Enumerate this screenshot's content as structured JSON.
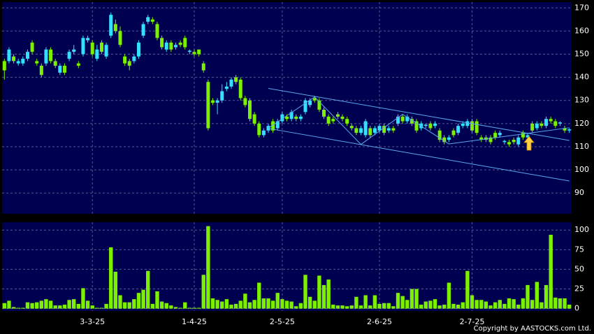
{
  "chart_data": [
    {
      "type": "candlestick",
      "open": [
        147,
        147,
        149,
        146,
        146,
        148,
        155,
        147,
        145,
        146,
        152,
        147,
        142,
        145,
        148,
        151,
        146,
        150,
        156,
        155,
        148,
        155,
        149,
        158,
        163,
        160,
        149,
        147,
        147,
        149,
        158,
        164,
        165,
        163,
        157,
        152,
        155,
        153,
        155,
        157,
        151,
        151,
        152,
        146,
        138,
        130,
        129,
        130,
        135,
        136,
        140,
        139,
        131,
        130,
        124,
        120,
        115,
        117,
        121,
        118,
        121,
        123,
        122,
        123,
        122,
        125,
        128,
        131,
        130,
        126,
        123,
        122,
        124,
        123,
        122,
        119,
        118,
        116,
        115,
        118,
        116,
        117,
        119,
        117,
        118,
        120,
        123,
        121,
        122,
        121,
        118,
        119,
        120,
        119,
        117,
        114,
        113,
        117,
        116,
        119,
        119,
        121,
        121,
        114,
        114,
        114,
        116,
        115,
        112,
        112,
        113,
        111,
        116,
        114,
        120,
        118,
        120,
        119,
        122,
        121,
        120,
        118,
        117
      ],
      "high": [
        148,
        153,
        150,
        148,
        149,
        152,
        156,
        148,
        146,
        153,
        153,
        148,
        146,
        146,
        152,
        154,
        147,
        158,
        158,
        156,
        154,
        156,
        155,
        168,
        165,
        162,
        150,
        148,
        150,
        156,
        164,
        167,
        166,
        164,
        158,
        156,
        156,
        155,
        156,
        158,
        152,
        152,
        152,
        147,
        139,
        131,
        131,
        137,
        138,
        140,
        141,
        140,
        132,
        131,
        125,
        121,
        118,
        120,
        122,
        122,
        125,
        124,
        126,
        124,
        124,
        131,
        131,
        132,
        131,
        127,
        124,
        123,
        125,
        124,
        123,
        120,
        119,
        119,
        122,
        119,
        119,
        120,
        120,
        119,
        119,
        124,
        124,
        124,
        123,
        122,
        121,
        120,
        121,
        121,
        118,
        115,
        115,
        118,
        120,
        121,
        122,
        122,
        122,
        115,
        115,
        115,
        117,
        117,
        113,
        113,
        114,
        115,
        117,
        116,
        121,
        121,
        121,
        123,
        123,
        122,
        121,
        119,
        118
      ],
      "low": [
        139,
        146,
        146,
        145,
        145,
        147,
        150,
        145,
        140,
        145,
        146,
        144,
        141,
        141,
        147,
        150,
        144,
        149,
        155,
        149,
        147,
        150,
        148,
        157,
        159,
        153,
        145,
        143,
        146,
        148,
        157,
        163,
        163,
        156,
        152,
        151,
        151,
        152,
        153,
        152,
        150,
        149,
        149,
        142,
        117,
        128,
        124,
        129,
        134,
        135,
        137,
        130,
        127,
        121,
        119,
        114,
        114,
        116,
        116,
        117,
        120,
        121,
        121,
        121,
        121,
        124,
        127,
        129,
        125,
        122,
        119,
        120,
        122,
        121,
        119,
        117,
        115,
        115,
        114,
        114,
        115,
        116,
        115,
        116,
        116,
        119,
        120,
        120,
        119,
        116,
        117,
        118,
        117,
        118,
        112,
        111,
        112,
        114,
        115,
        118,
        118,
        116,
        115,
        112,
        112,
        111,
        113,
        114,
        111,
        110,
        111,
        110,
        113,
        113,
        116,
        117,
        118,
        118,
        120,
        118,
        119,
        116,
        116
      ],
      "close": [
        143,
        152,
        147,
        147,
        148,
        151,
        151,
        146,
        141,
        152,
        147,
        145,
        145,
        142,
        151,
        152,
        145,
        157,
        157,
        150,
        152,
        151,
        154,
        167,
        160,
        154,
        146,
        145,
        149,
        155,
        163,
        166,
        164,
        157,
        153,
        155,
        152,
        154,
        154,
        153,
        151.5,
        150,
        150,
        143,
        118,
        129,
        130,
        134,
        136,
        139,
        138,
        131,
        128,
        122,
        120,
        115,
        117,
        119,
        117,
        121,
        124,
        122,
        125,
        122,
        123,
        130,
        130,
        130,
        126,
        123,
        120,
        121,
        123,
        122,
        120,
        118,
        116,
        118,
        121,
        115,
        118,
        119,
        116,
        118,
        117,
        123,
        121,
        123,
        120,
        117,
        120,
        119.5,
        118,
        120,
        113,
        112,
        114,
        115,
        119,
        120,
        121,
        117,
        116,
        113,
        113,
        112,
        114,
        116,
        112.5,
        111,
        112,
        114,
        114,
        115,
        117,
        120,
        119,
        122,
        121,
        119,
        120.5,
        117,
        117.5
      ],
      "up_color": "#33e0ff",
      "down_color": "#7cf000",
      "ylim": [
        81,
        172.5
      ],
      "yticks": [
        90,
        100,
        110,
        120,
        130,
        140,
        150,
        160,
        170
      ],
      "grid": true,
      "trendline_color": "#5aaaf0",
      "trendlines": [
        {
          "x": [
            57,
            122
          ],
          "y": [
            135.2,
            112.7
          ]
        },
        {
          "x": [
            57,
            122
          ],
          "y": [
            117.9,
            95.2
          ]
        },
        {
          "x": [
            57,
            67,
            77,
            86,
            96,
            122
          ],
          "y": [
            118,
            131.5,
            111,
            124,
            111.2,
            118.2
          ]
        }
      ]
    },
    {
      "type": "bar",
      "categories": [
        null,
        null,
        null,
        null,
        null,
        null,
        null,
        null,
        null,
        null,
        null,
        null,
        null,
        null,
        null,
        null,
        null,
        null,
        null,
        "3-3-25",
        null,
        null,
        null,
        null,
        null,
        null,
        null,
        null,
        null,
        null,
        null,
        null,
        null,
        null,
        null,
        null,
        null,
        null,
        null,
        null,
        null,
        "1-4-25",
        null,
        null,
        null,
        null,
        null,
        null,
        null,
        null,
        null,
        null,
        null,
        null,
        null,
        null,
        null,
        null,
        null,
        null,
        "2-5-25",
        null,
        null,
        null,
        null,
        null,
        null,
        null,
        null,
        null,
        null,
        null,
        null,
        null,
        null,
        null,
        null,
        null,
        null,
        null,
        null,
        "2-6-25",
        null,
        null,
        null,
        null,
        null,
        null,
        null,
        null,
        null,
        null,
        null,
        null,
        null,
        null,
        null,
        null,
        null,
        null,
        null,
        "2-7-25",
        null,
        null,
        null,
        null,
        null,
        null,
        null,
        null,
        null,
        null,
        null,
        null,
        null,
        null,
        null,
        null,
        null,
        null,
        null,
        null,
        null
      ],
      "values": [
        7,
        10,
        2,
        1,
        1,
        8,
        7,
        8,
        10,
        12,
        10,
        4,
        4,
        5,
        11,
        12,
        6,
        26,
        10,
        4,
        1,
        1,
        6,
        78,
        47,
        17,
        8,
        8,
        12,
        20,
        24,
        48,
        6,
        22,
        9,
        7,
        4,
        2,
        1,
        8,
        1,
        1,
        1,
        43,
        105,
        13,
        11,
        9,
        12,
        5,
        6,
        10,
        19,
        8,
        11,
        33,
        13,
        13,
        10,
        20,
        12,
        10,
        9,
        3,
        7,
        43,
        15,
        10,
        42,
        30,
        37,
        5,
        4,
        4,
        3,
        4,
        15,
        4,
        17,
        4,
        17,
        6,
        7,
        7,
        3,
        20,
        16,
        11,
        25,
        25,
        5,
        9,
        10,
        12,
        4,
        5,
        33,
        6,
        5,
        8,
        48,
        17,
        11,
        11,
        9,
        4,
        8,
        11,
        6,
        13,
        12,
        5,
        13,
        30,
        11,
        34,
        8,
        30,
        94,
        14,
        13,
        13,
        5
      ],
      "color": "#7cf000",
      "ylim": [
        -3,
        110
      ],
      "yticks": [
        0,
        25,
        50,
        75,
        100
      ],
      "grid": true
    }
  ],
  "footer": "Copyright by AASTOCKS.com Ltd."
}
